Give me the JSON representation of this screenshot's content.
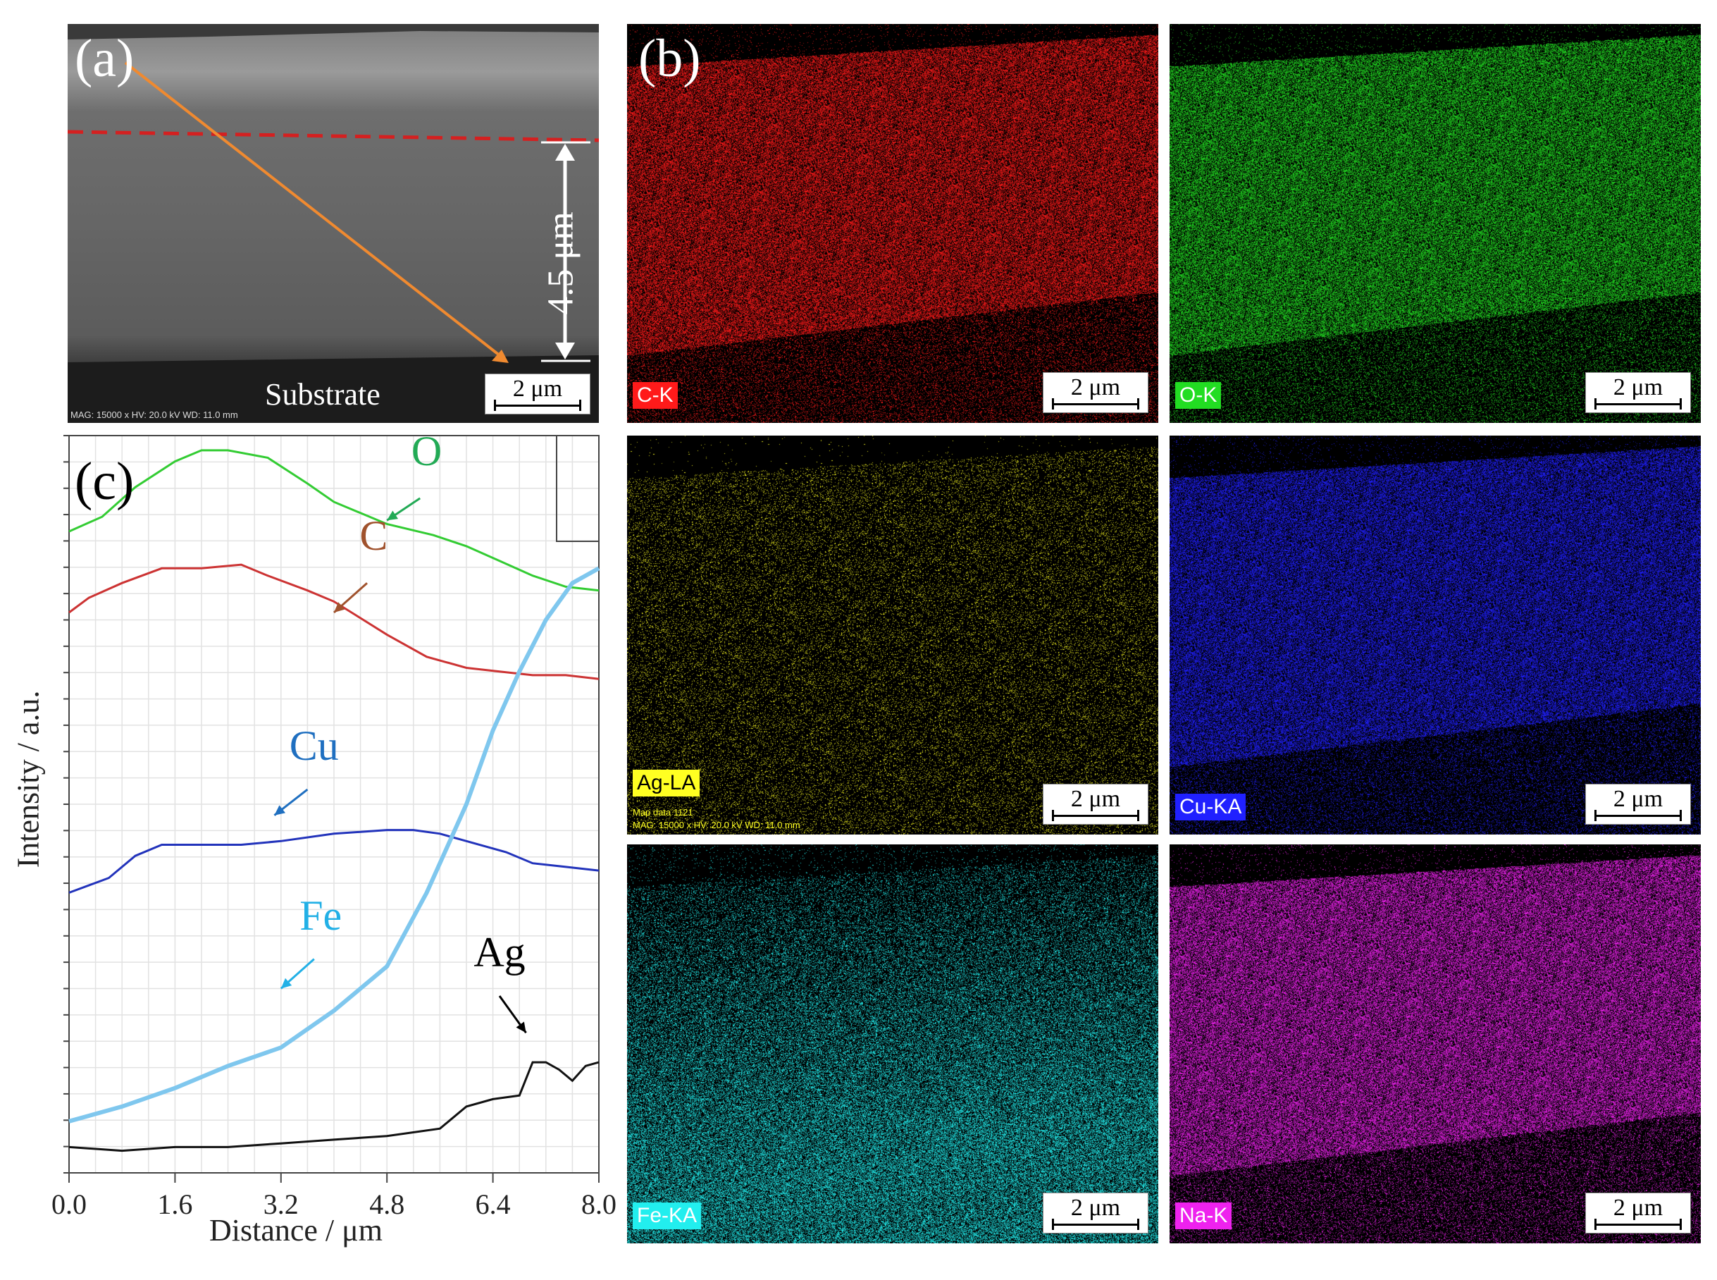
{
  "panel_a": {
    "letter": "(a)",
    "substrate_label": "Substrate",
    "thickness_label": "4.5 μm",
    "scale_bar": "2 μm",
    "metadata": "MAG: 15000 x  HV: 20.0 kV  WD: 11.0 mm",
    "colors": {
      "dashed_line": "#d42020",
      "scan_arrow": "#f08a30"
    }
  },
  "panel_b": {
    "letter": "(b)",
    "maps": [
      {
        "label": "C-K",
        "color": "#ff1a1a",
        "scale_bar": "2 μm"
      },
      {
        "label": "O-K",
        "color": "#22dd22",
        "scale_bar": "2 μm"
      },
      {
        "label": "Ag-LA",
        "color": "#ffff22",
        "scale_bar": "2 μm",
        "sub_text": "Map data 1121",
        "metadata": "MAG: 15000 x  HV: 20.0 kV  WD: 11.0 mm"
      },
      {
        "label": "Cu-KA",
        "color": "#2020ff",
        "scale_bar": "2 μm"
      },
      {
        "label": "Fe-KA",
        "color": "#22eeee",
        "scale_bar": "2 μm"
      },
      {
        "label": "Na-K",
        "color": "#ee22ee",
        "scale_bar": "2 μm"
      }
    ]
  },
  "panel_c": {
    "letter": "(c)"
  },
  "chart_data": {
    "type": "line",
    "title": "",
    "xlabel": "Distance / μm",
    "ylabel": "Intensity / a.u.",
    "xlim": [
      0,
      8.0
    ],
    "ylim": [
      0,
      100
    ],
    "x_ticks": [
      "0.0",
      "1.6",
      "3.2",
      "4.8",
      "6.4",
      "8.0"
    ],
    "series": [
      {
        "name": "O",
        "color": "#33cc33",
        "label_color": "#22aa55",
        "x": [
          0,
          0.5,
          1.0,
          1.6,
          2.0,
          2.4,
          3.0,
          3.6,
          4.0,
          4.8,
          5.5,
          6.0,
          6.5,
          7.0,
          7.5,
          8.0
        ],
        "y": [
          87,
          89,
          93,
          96.5,
          98,
          98,
          97,
          93.5,
          91,
          88,
          86.5,
          85,
          83,
          81,
          79.5,
          79
        ]
      },
      {
        "name": "C",
        "color": "#cc3333",
        "label_color": "#a0522d",
        "x": [
          0,
          0.3,
          0.8,
          1.4,
          2.0,
          2.6,
          3.0,
          3.6,
          4.0,
          4.8,
          5.4,
          6.0,
          6.5,
          7.0,
          7.5,
          8.0
        ],
        "y": [
          76,
          78,
          80,
          82,
          82,
          82.5,
          81,
          79,
          77.5,
          73,
          70,
          68.5,
          68,
          67.5,
          67.5,
          67
        ]
      },
      {
        "name": "Cu",
        "color": "#2233bb",
        "label_color": "#1f6fc0",
        "x": [
          0,
          0.6,
          1.0,
          1.4,
          2.0,
          2.6,
          3.2,
          4.0,
          4.8,
          5.2,
          5.6,
          6.0,
          6.6,
          7.0,
          7.5,
          8.0
        ],
        "y": [
          38,
          40,
          43,
          44.5,
          44.5,
          44.5,
          45,
          46,
          46.5,
          46.5,
          46,
          45,
          43.5,
          42,
          41.5,
          41
        ]
      },
      {
        "name": "Fe",
        "color": "#7fc7ee",
        "label_color": "#22b0e6",
        "x": [
          0,
          0.8,
          1.6,
          2.4,
          3.2,
          4.0,
          4.8,
          5.4,
          6.0,
          6.4,
          6.8,
          7.2,
          7.6,
          8.0
        ],
        "y": [
          7,
          9,
          11.5,
          14.5,
          17,
          22,
          28,
          38,
          50,
          60,
          68,
          75,
          80,
          82
        ]
      },
      {
        "name": "Ag",
        "color": "#111111",
        "label_color": "#000000",
        "x": [
          0,
          0.8,
          1.6,
          2.4,
          3.2,
          4.0,
          4.8,
          5.6,
          6.0,
          6.4,
          6.8,
          7.0,
          7.2,
          7.4,
          7.6,
          7.8,
          8.0
        ],
        "y": [
          3.5,
          3,
          3.5,
          3.5,
          4,
          4.5,
          5,
          6,
          9,
          10,
          10.5,
          15,
          15,
          14,
          12.5,
          14.5,
          15
        ]
      }
    ]
  }
}
